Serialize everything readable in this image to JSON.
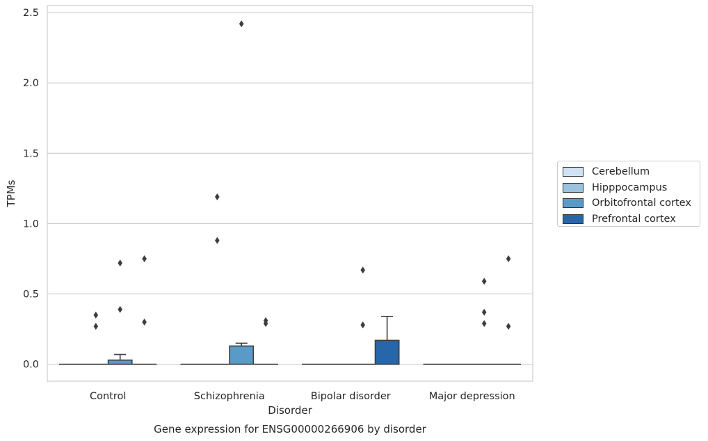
{
  "chart_data": {
    "type": "box",
    "title": "Gene expression for ENSG00000266906 by disorder",
    "xlabel": "Disorder",
    "ylabel": "TPMs",
    "ylim": [
      -0.12,
      2.55
    ],
    "yticks": [
      0.0,
      0.5,
      1.0,
      1.5,
      2.0,
      2.5
    ],
    "ytick_labels": [
      "0.0",
      "0.5",
      "1.0",
      "1.5",
      "2.0",
      "2.5"
    ],
    "grid": true,
    "legend_position": "right",
    "categories": [
      "Control",
      "Schizophrenia",
      "Bipolar disorder",
      "Major depression"
    ],
    "series": [
      {
        "name": "Cerebellum",
        "color": "#d0e1f2",
        "boxes": [
          {
            "q1": 0,
            "median": 0,
            "q3": 0,
            "whislo": 0,
            "whishi": 0,
            "fliers": []
          },
          {
            "q1": 0,
            "median": 0,
            "q3": 0,
            "whislo": 0,
            "whishi": 0,
            "fliers": []
          },
          {
            "q1": 0,
            "median": 0,
            "q3": 0,
            "whislo": 0,
            "whishi": 0,
            "fliers": []
          },
          {
            "q1": 0,
            "median": 0,
            "q3": 0,
            "whislo": 0,
            "whishi": 0,
            "fliers": []
          }
        ]
      },
      {
        "name": "Hipppocampus",
        "color": "#9ac2dd",
        "boxes": [
          {
            "q1": 0,
            "median": 0,
            "q3": 0,
            "whislo": 0,
            "whishi": 0,
            "fliers": [
              0.35,
              0.27
            ]
          },
          {
            "q1": 0,
            "median": 0,
            "q3": 0,
            "whislo": 0,
            "whishi": 0,
            "fliers": [
              1.19,
              0.88
            ]
          },
          {
            "q1": 0,
            "median": 0,
            "q3": 0,
            "whislo": 0,
            "whishi": 0,
            "fliers": []
          },
          {
            "q1": 0,
            "median": 0,
            "q3": 0,
            "whislo": 0,
            "whishi": 0,
            "fliers": []
          }
        ]
      },
      {
        "name": "Orbitofrontal cortex",
        "color": "#5a9ac6",
        "boxes": [
          {
            "q1": 0,
            "median": 0,
            "q3": 0.03,
            "whislo": 0,
            "whishi": 0.07,
            "fliers": [
              0.72,
              0.39
            ]
          },
          {
            "q1": 0,
            "median": 0,
            "q3": 0.13,
            "whislo": 0,
            "whishi": 0.15,
            "fliers": [
              2.42
            ]
          },
          {
            "q1": 0,
            "median": 0,
            "q3": 0,
            "whislo": 0,
            "whishi": 0,
            "fliers": [
              0.67,
              0.28
            ]
          },
          {
            "q1": 0,
            "median": 0,
            "q3": 0,
            "whislo": 0,
            "whishi": 0,
            "fliers": [
              0.59,
              0.37,
              0.29
            ]
          }
        ]
      },
      {
        "name": "Prefrontal cortex",
        "color": "#2767a9",
        "boxes": [
          {
            "q1": 0,
            "median": 0,
            "q3": 0,
            "whislo": 0,
            "whishi": 0,
            "fliers": [
              0.75,
              0.3
            ]
          },
          {
            "q1": 0,
            "median": 0,
            "q3": 0,
            "whislo": 0,
            "whishi": 0,
            "fliers": [
              0.31,
              0.29
            ]
          },
          {
            "q1": 0,
            "median": 0,
            "q3": 0.17,
            "whislo": 0,
            "whishi": 0.34,
            "fliers": []
          },
          {
            "q1": 0,
            "median": 0,
            "q3": 0,
            "whislo": 0,
            "whishi": 0,
            "fliers": [
              0.75,
              0.27
            ]
          }
        ]
      }
    ]
  }
}
